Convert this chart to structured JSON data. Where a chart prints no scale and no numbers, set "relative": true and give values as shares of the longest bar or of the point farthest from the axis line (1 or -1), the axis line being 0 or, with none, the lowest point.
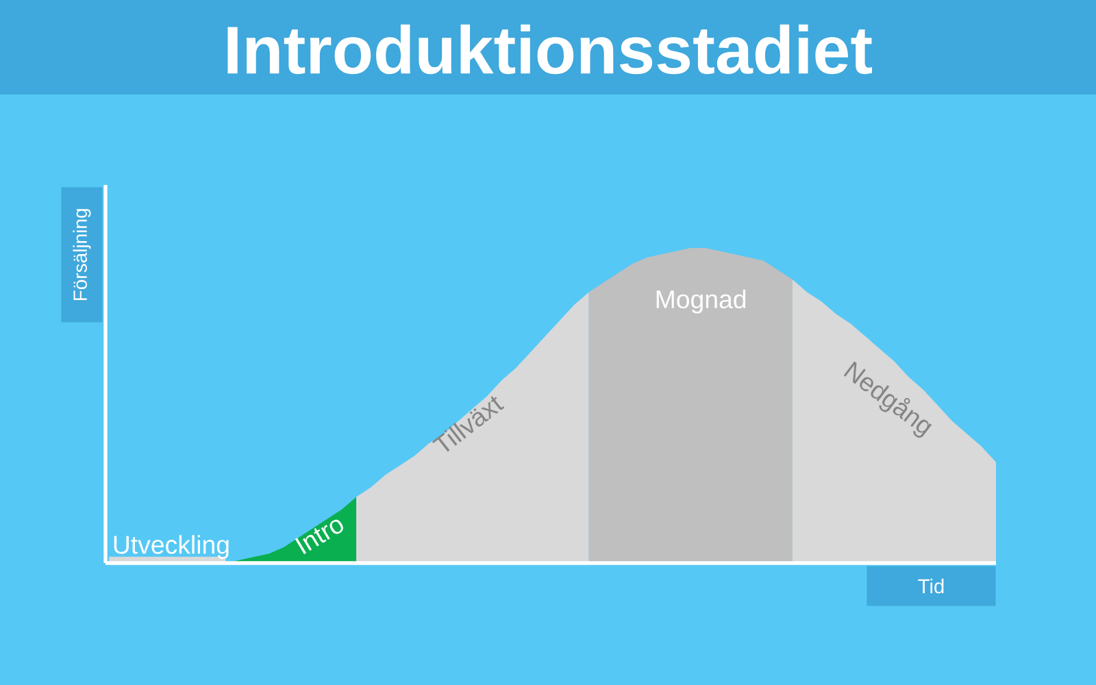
{
  "chart_data": {
    "type": "area",
    "title": "Introduktionsstadiet",
    "xlabel": "Tid",
    "ylabel": "Försäljning",
    "relative": true,
    "categories": [
      null,
      null,
      null,
      null,
      null,
      null,
      null,
      null,
      null,
      null,
      null,
      null,
      null,
      null,
      null,
      null,
      null,
      null,
      null,
      null,
      null,
      null,
      null,
      null,
      null,
      null,
      null,
      null,
      null,
      null,
      null,
      null,
      null,
      null,
      null,
      null,
      null,
      null,
      null,
      null,
      null,
      null,
      null,
      null,
      null,
      null,
      null,
      null,
      null,
      null,
      null,
      null,
      null,
      null,
      null,
      null,
      null,
      null,
      null,
      null,
      null,
      null
    ],
    "series": [
      {
        "name": "Utveckling",
        "color": "#d9d9d9",
        "values": [
          0.02,
          0.02,
          0.02,
          0.02,
          0.02,
          0.02,
          0.02,
          0.02,
          0.02,
          null,
          null,
          null,
          null,
          null,
          null,
          null,
          null,
          null,
          null,
          null,
          null,
          null,
          null,
          null,
          null,
          null,
          null,
          null,
          null,
          null,
          null,
          null,
          null,
          null,
          null,
          null,
          null,
          null,
          null,
          null,
          null,
          null,
          null,
          null,
          null,
          null,
          null,
          null,
          null,
          null,
          null,
          null,
          null,
          null,
          null,
          null,
          null,
          null,
          null,
          null,
          null,
          null
        ]
      },
      {
        "name": "Intro",
        "color": "#0aaf4f",
        "values": [
          null,
          null,
          null,
          null,
          null,
          null,
          null,
          null,
          0,
          0.01,
          0.02,
          0.03,
          0.05,
          0.08,
          0.11,
          0.14,
          0.17,
          0.21,
          null,
          null,
          null,
          null,
          null,
          null,
          null,
          null,
          null,
          null,
          null,
          null,
          null,
          null,
          null,
          null,
          null,
          null,
          null,
          null,
          null,
          null,
          null,
          null,
          null,
          null,
          null,
          null,
          null,
          null,
          null,
          null,
          null,
          null,
          null,
          null,
          null,
          null,
          null,
          null,
          null,
          null,
          null,
          null
        ]
      },
      {
        "name": "Tillväxt",
        "color": "#d9d9d9",
        "values": [
          null,
          null,
          null,
          null,
          null,
          null,
          null,
          null,
          null,
          null,
          null,
          null,
          null,
          null,
          null,
          null,
          null,
          0.21,
          0.24,
          0.28,
          0.31,
          0.34,
          0.38,
          0.41,
          0.45,
          0.49,
          0.53,
          0.58,
          0.62,
          0.67,
          0.72,
          0.77,
          0.82,
          0.86,
          null,
          null,
          null,
          null,
          null,
          null,
          null,
          null,
          null,
          null,
          null,
          null,
          null,
          null,
          null,
          null,
          null,
          null,
          null,
          null,
          null,
          null,
          null,
          null,
          null,
          null,
          null,
          null
        ]
      },
      {
        "name": "Mognad",
        "color": "#bfbfbf",
        "values": [
          null,
          null,
          null,
          null,
          null,
          null,
          null,
          null,
          null,
          null,
          null,
          null,
          null,
          null,
          null,
          null,
          null,
          null,
          null,
          null,
          null,
          null,
          null,
          null,
          null,
          null,
          null,
          null,
          null,
          null,
          null,
          null,
          null,
          0.86,
          0.89,
          0.92,
          0.95,
          0.97,
          0.98,
          0.99,
          1,
          1,
          0.99,
          0.98,
          0.97,
          0.96,
          0.93,
          0.9,
          null,
          null,
          null,
          null,
          null,
          null,
          null,
          null,
          null,
          null,
          null,
          null,
          null,
          null
        ]
      },
      {
        "name": "Nedgång",
        "color": "#d9d9d9",
        "values": [
          null,
          null,
          null,
          null,
          null,
          null,
          null,
          null,
          null,
          null,
          null,
          null,
          null,
          null,
          null,
          null,
          null,
          null,
          null,
          null,
          null,
          null,
          null,
          null,
          null,
          null,
          null,
          null,
          null,
          null,
          null,
          null,
          null,
          null,
          null,
          null,
          null,
          null,
          null,
          null,
          null,
          null,
          null,
          null,
          null,
          null,
          null,
          0.9,
          0.86,
          0.83,
          0.79,
          0.76,
          0.72,
          0.68,
          0.64,
          0.59,
          0.55,
          0.5,
          0.45,
          0.41,
          0.37,
          0.32
        ]
      }
    ]
  }
}
